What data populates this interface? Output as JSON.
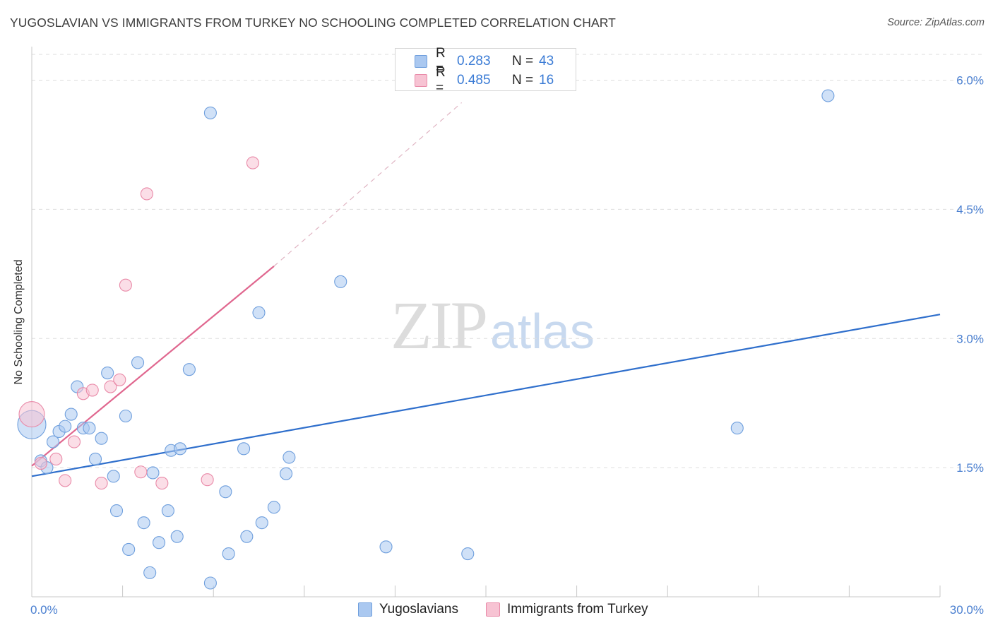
{
  "header": {
    "title": "YUGOSLAVIAN VS IMMIGRANTS FROM TURKEY NO SCHOOLING COMPLETED CORRELATION CHART",
    "source": "Source: ZipAtlas.com"
  },
  "watermark": {
    "zip": "ZIP",
    "atlas": "atlas"
  },
  "legend": {
    "rows": [
      {
        "r_label": "R =",
        "r_value": "0.283",
        "n_label": "N =",
        "n_value": "43"
      },
      {
        "r_label": "R =",
        "r_value": "0.485",
        "n_label": "N =",
        "n_value": "16"
      }
    ]
  },
  "bottom_legend": {
    "series1": "Yugoslavians",
    "series2": "Immigrants from Turkey"
  },
  "colors": {
    "series1_fill": "#aac8f0",
    "series1_stroke": "#6f9fdd",
    "series1_line": "#2f6fcc",
    "series2_fill": "#f7c3d3",
    "series2_stroke": "#e98aa8",
    "series2_line": "#e0678f",
    "grid": "#dddddd",
    "axis_label": "#4a7fd0"
  },
  "chart_data": {
    "type": "scatter",
    "title": "YUGOSLAVIAN VS IMMIGRANTS FROM TURKEY NO SCHOOLING COMPLETED CORRELATION CHART",
    "xlabel": "",
    "ylabel": "No Schooling Completed",
    "xlim": [
      0,
      30
    ],
    "ylim": [
      0,
      6.3
    ],
    "x_tick_labels": [
      "0.0%",
      "30.0%"
    ],
    "x_ticks": [
      0,
      30
    ],
    "y_ticks": [
      1.5,
      3.0,
      4.5,
      6.0
    ],
    "y_tick_labels": [
      "1.5%",
      "3.0%",
      "4.5%",
      "6.0%"
    ],
    "grid": true,
    "legend_position": "top-center",
    "series": [
      {
        "name": "Yugoslavians",
        "R": 0.283,
        "N": 43,
        "points": [
          [
            0.0,
            2.0,
            3
          ],
          [
            0.3,
            1.58,
            1
          ],
          [
            0.5,
            1.5,
            1
          ],
          [
            0.7,
            1.8,
            1
          ],
          [
            0.9,
            1.92,
            1
          ],
          [
            1.1,
            1.98,
            1
          ],
          [
            1.3,
            2.12,
            1
          ],
          [
            1.5,
            2.44,
            1
          ],
          [
            1.7,
            1.96,
            1
          ],
          [
            1.9,
            1.96,
            1
          ],
          [
            2.1,
            1.6,
            1
          ],
          [
            2.3,
            1.84,
            1
          ],
          [
            2.5,
            2.6,
            1
          ],
          [
            2.7,
            1.4,
            1
          ],
          [
            2.8,
            1.0,
            1
          ],
          [
            3.1,
            2.1,
            1
          ],
          [
            3.2,
            0.55,
            1
          ],
          [
            3.5,
            2.72,
            1
          ],
          [
            3.7,
            0.86,
            1
          ],
          [
            3.9,
            0.28,
            1
          ],
          [
            4.0,
            1.44,
            1
          ],
          [
            4.2,
            0.63,
            1
          ],
          [
            4.5,
            1.0,
            1
          ],
          [
            4.6,
            1.7,
            1
          ],
          [
            4.8,
            0.7,
            1
          ],
          [
            4.9,
            1.72,
            1
          ],
          [
            5.2,
            2.64,
            1
          ],
          [
            5.9,
            0.16,
            1
          ],
          [
            5.9,
            5.62,
            1
          ],
          [
            6.4,
            1.22,
            1
          ],
          [
            6.5,
            0.5,
            1
          ],
          [
            7.0,
            1.72,
            1
          ],
          [
            7.1,
            0.7,
            1
          ],
          [
            7.5,
            3.3,
            1
          ],
          [
            7.6,
            0.86,
            1
          ],
          [
            8.0,
            1.04,
            1
          ],
          [
            8.4,
            1.43,
            1
          ],
          [
            8.5,
            1.62,
            1
          ],
          [
            10.2,
            3.66,
            1
          ],
          [
            11.7,
            0.58,
            1
          ],
          [
            14.4,
            0.5,
            1
          ],
          [
            23.3,
            1.96,
            1
          ],
          [
            26.3,
            5.82,
            1
          ]
        ],
        "trend": {
          "x": [
            0,
            30
          ],
          "y": [
            1.4,
            3.28
          ]
        }
      },
      {
        "name": "Immigrants from Turkey",
        "R": 0.485,
        "N": 16,
        "points": [
          [
            0.0,
            2.12,
            2
          ],
          [
            0.3,
            1.55,
            1
          ],
          [
            0.8,
            1.6,
            1
          ],
          [
            1.1,
            1.35,
            1
          ],
          [
            1.4,
            1.8,
            1
          ],
          [
            1.7,
            2.36,
            1
          ],
          [
            2.0,
            2.4,
            1
          ],
          [
            2.3,
            1.32,
            1
          ],
          [
            2.6,
            2.44,
            1
          ],
          [
            2.9,
            2.52,
            1
          ],
          [
            3.1,
            3.62,
            1
          ],
          [
            3.6,
            1.45,
            1
          ],
          [
            3.8,
            4.68,
            1
          ],
          [
            4.3,
            1.32,
            1
          ],
          [
            5.8,
            1.36,
            1
          ],
          [
            7.3,
            5.04,
            1
          ]
        ],
        "trend": {
          "x": [
            0,
            8.0
          ],
          "y": [
            1.52,
            3.84
          ]
        },
        "trend_extension": {
          "x": [
            8.0,
            14.2
          ],
          "y": [
            3.84,
            5.74
          ]
        }
      }
    ]
  }
}
